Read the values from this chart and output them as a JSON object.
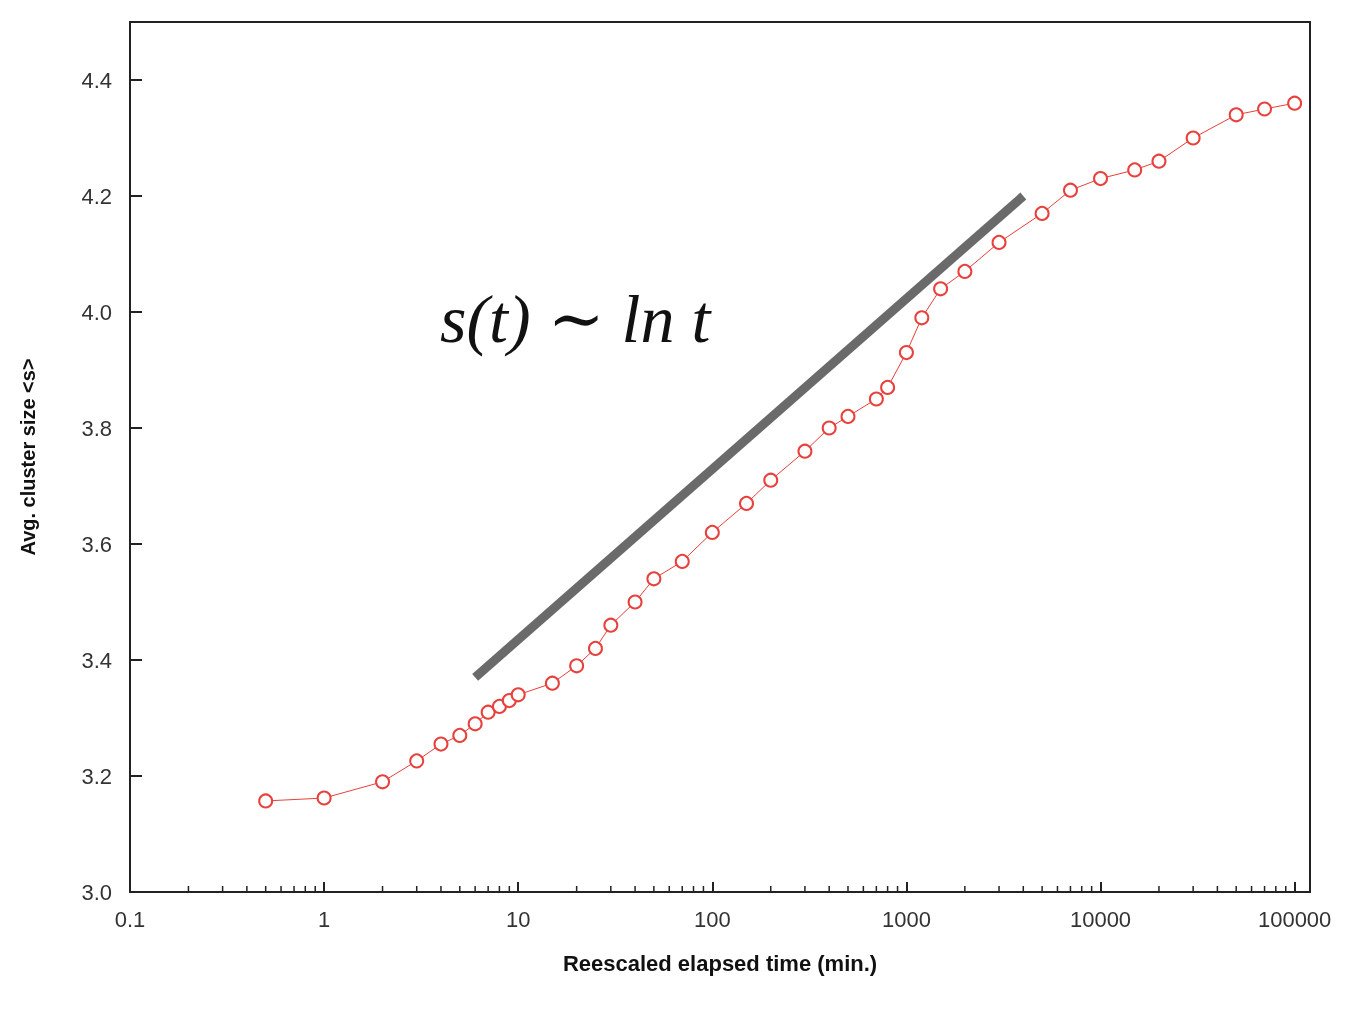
{
  "chart_data": {
    "type": "line",
    "xlabel": "Reescaled elapsed time (min.)",
    "ylabel": "Avg. cluster size <s>",
    "log": "x",
    "grid": false,
    "xlim": [
      0.1,
      120000
    ],
    "xticks": [
      0.1,
      1,
      10,
      100,
      1000,
      10000,
      100000
    ],
    "ylim": [
      3.0,
      4.5
    ],
    "yticks": [
      {
        "value": 3,
        "label": "3.0"
      },
      3.2,
      3.4,
      3.6,
      3.8,
      {
        "value": 4,
        "label": "4.0"
      },
      4.2,
      4.4
    ],
    "annotations": [
      "s(t) ∼ ln t"
    ],
    "series": [
      {
        "color": "#e8403c",
        "marker": "circle",
        "line_style": "solid",
        "x": [
          0.5,
          1,
          2,
          3,
          4,
          5,
          6,
          7,
          8,
          9,
          10,
          15,
          20,
          25,
          30,
          40,
          50,
          70,
          100,
          150,
          200,
          300,
          400,
          500,
          700,
          800,
          1000,
          1200,
          1500,
          2000,
          3000,
          5000,
          7000,
          10000,
          15000,
          20000,
          30000,
          50000,
          70000,
          100000
        ],
        "values": [
          3.157,
          3.162,
          3.19,
          3.226,
          3.255,
          3.27,
          3.29,
          3.31,
          3.32,
          3.33,
          3.34,
          3.36,
          3.39,
          3.42,
          3.46,
          3.5,
          3.54,
          3.57,
          3.62,
          3.67,
          3.71,
          3.76,
          3.8,
          3.82,
          3.85,
          3.87,
          3.93,
          3.99,
          4.04,
          4.07,
          4.12,
          4.17,
          4.21,
          4.23,
          4.245,
          4.26,
          4.3,
          4.34,
          4.35,
          4.36
        ]
      },
      {
        "type": "line",
        "color": "#5a5a5a",
        "marker": "none",
        "line_style": "solid",
        "x": [
          6,
          4000
        ],
        "values": [
          3.37,
          4.2
        ]
      }
    ]
  }
}
